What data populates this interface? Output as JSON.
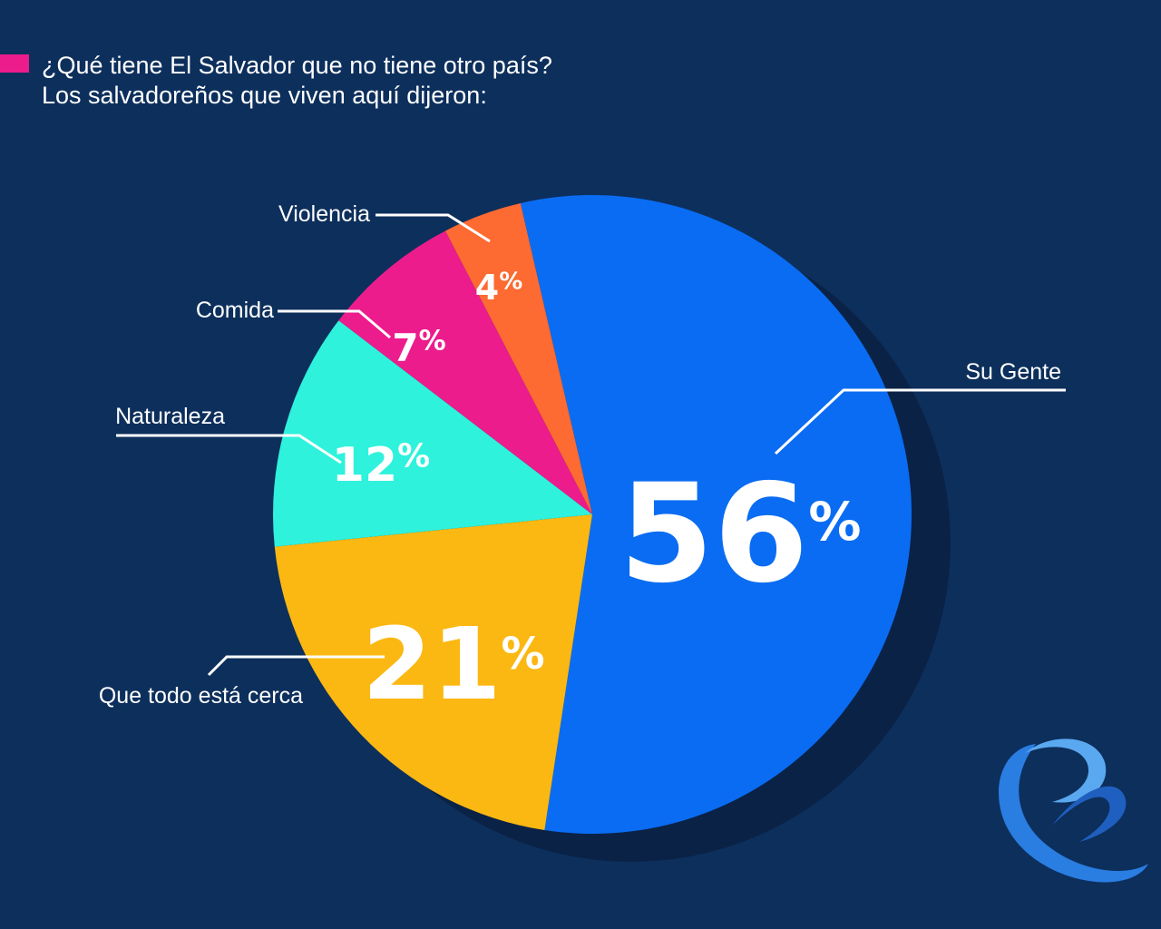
{
  "title": {
    "line1": "¿Qué tiene El Salvador que no tiene otro país?",
    "line2": "Los salvadoreños que viven aquí dijeron:"
  },
  "colors": {
    "background": "#0d2f5c",
    "accent": "#ec1c8c"
  },
  "logo": {
    "icon": "e-swirl-logo-icon"
  },
  "chart_data": {
    "type": "pie",
    "title": "¿Qué tiene El Salvador que no tiene otro país?",
    "subtitle": "Los salvadoreños que viven aquí dijeron:",
    "legend": "none",
    "slices": [
      {
        "label": "Su Gente",
        "value": 56,
        "display": "56%",
        "color": "#0a6cf2"
      },
      {
        "label": "Que todo está cerca",
        "value": 21,
        "display": "21%",
        "color": "#fbb812"
      },
      {
        "label": "Naturaleza",
        "value": 12,
        "display": "12%",
        "color": "#2ef2dc"
      },
      {
        "label": "Comida",
        "value": 7,
        "display": "7%",
        "color": "#ec1c8c"
      },
      {
        "label": "Violencia",
        "value": 4,
        "display": "4%",
        "color": "#fd6a32"
      }
    ]
  }
}
